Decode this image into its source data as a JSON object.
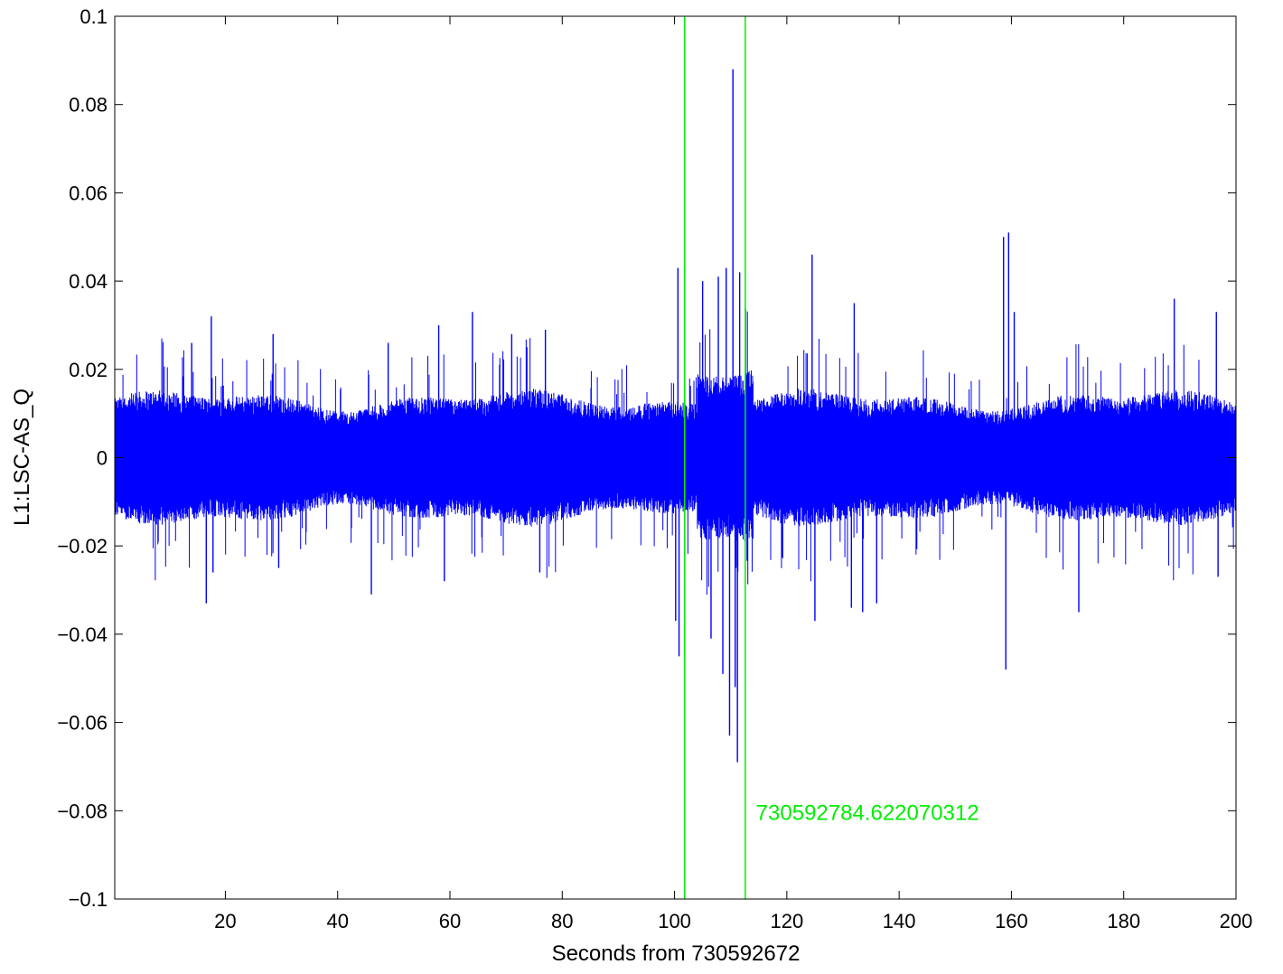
{
  "chart_data": {
    "type": "line",
    "title": "",
    "xlabel": "Seconds from 730592672",
    "ylabel": "L1:LSC-AS_Q",
    "xlim": [
      0.3,
      200
    ],
    "ylim": [
      -0.1,
      0.1
    ],
    "xticks": [
      20,
      40,
      60,
      80,
      100,
      120,
      140,
      160,
      180,
      200
    ],
    "xtick_labels": [
      "20",
      "40",
      "60",
      "80",
      "100",
      "120",
      "140",
      "160",
      "180",
      "200"
    ],
    "yticks": [
      -0.1,
      -0.08,
      -0.06,
      -0.04,
      -0.02,
      0,
      0.02,
      0.04,
      0.06,
      0.08,
      0.1
    ],
    "ytick_labels": [
      "−0.1",
      "−0.08",
      "−0.06",
      "−0.04",
      "−0.02",
      "0",
      "0.02",
      "0.04",
      "0.06",
      "0.08",
      "0.1"
    ],
    "grid": false,
    "legend": "none",
    "series": [
      {
        "color": "#0000ff",
        "baseline_band": [
          -0.012,
          0.012
        ],
        "spikes": [
          {
            "x": 14.0,
            "y": 0.026
          },
          {
            "x": 16.6,
            "y": -0.033
          },
          {
            "x": 17.5,
            "y": 0.032
          },
          {
            "x": 17.8,
            "y": -0.026
          },
          {
            "x": 28.5,
            "y": 0.028
          },
          {
            "x": 29.5,
            "y": -0.025
          },
          {
            "x": 46.0,
            "y": -0.031
          },
          {
            "x": 49.0,
            "y": 0.026
          },
          {
            "x": 58.0,
            "y": 0.03
          },
          {
            "x": 59.0,
            "y": -0.028
          },
          {
            "x": 64.0,
            "y": 0.033
          },
          {
            "x": 71.0,
            "y": 0.028
          },
          {
            "x": 76.0,
            "y": -0.026
          },
          {
            "x": 77.0,
            "y": 0.029
          },
          {
            "x": 100.2,
            "y": -0.037
          },
          {
            "x": 100.6,
            "y": 0.043
          },
          {
            "x": 100.8,
            "y": -0.045
          },
          {
            "x": 105.0,
            "y": 0.04
          },
          {
            "x": 106.5,
            "y": -0.041
          },
          {
            "x": 107.8,
            "y": 0.041
          },
          {
            "x": 108.6,
            "y": -0.049
          },
          {
            "x": 109.2,
            "y": 0.043
          },
          {
            "x": 109.8,
            "y": -0.063
          },
          {
            "x": 110.4,
            "y": 0.088
          },
          {
            "x": 110.8,
            "y": -0.052
          },
          {
            "x": 111.2,
            "y": -0.069
          },
          {
            "x": 111.6,
            "y": 0.042
          },
          {
            "x": 124.5,
            "y": 0.046
          },
          {
            "x": 125.0,
            "y": -0.037
          },
          {
            "x": 131.5,
            "y": -0.034
          },
          {
            "x": 132.0,
            "y": 0.035
          },
          {
            "x": 133.5,
            "y": -0.035
          },
          {
            "x": 136.0,
            "y": -0.033
          },
          {
            "x": 158.6,
            "y": 0.05
          },
          {
            "x": 159.0,
            "y": -0.048
          },
          {
            "x": 159.5,
            "y": 0.051
          },
          {
            "x": 160.5,
            "y": 0.033
          },
          {
            "x": 172.0,
            "y": -0.035
          },
          {
            "x": 189.0,
            "y": 0.036
          },
          {
            "x": 196.5,
            "y": 0.033
          },
          {
            "x": 196.8,
            "y": -0.027
          }
        ]
      }
    ],
    "vertical_lines": [
      {
        "x": 101.8,
        "color": "#00ee00"
      },
      {
        "x": 112.6,
        "color": "#00ee00"
      }
    ],
    "annotations": [
      {
        "text": "730592784.622070312",
        "x": 114.5,
        "y": -0.08,
        "color": "#00ee00"
      }
    ]
  }
}
